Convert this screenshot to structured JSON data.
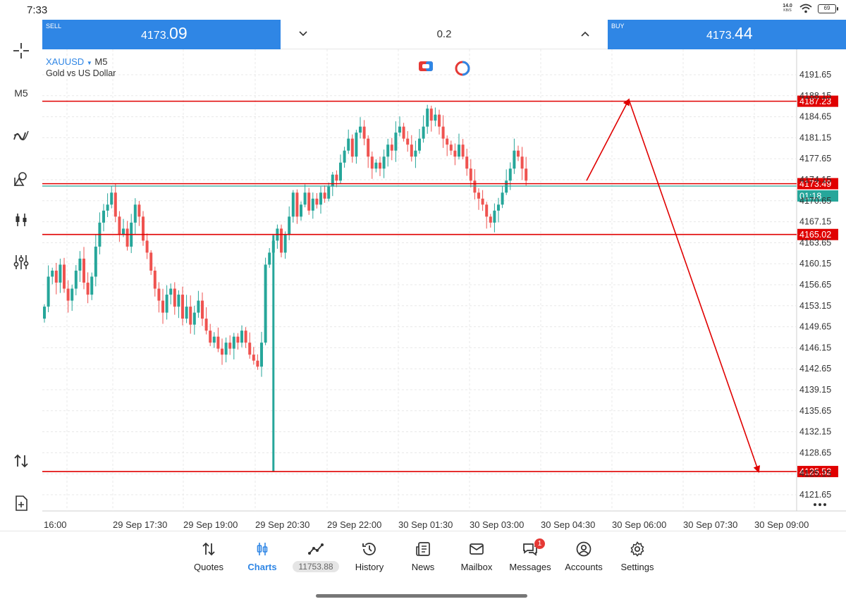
{
  "status": {
    "time": "7:33",
    "net_speed_value": "14.0",
    "net_speed_unit": "KB/S",
    "battery": "69"
  },
  "trade": {
    "sell_label": "SELL",
    "sell_price_main": "4173.",
    "sell_price_big": "09",
    "volume": "0.2",
    "buy_label": "BUY",
    "buy_price_main": "4173.",
    "buy_price_big": "44"
  },
  "left_toolbar": {
    "timeframe": "M5"
  },
  "chart": {
    "symbol": "XAUUSD",
    "timeframe": "M5",
    "description": "Gold vs US Dollar"
  },
  "colors": {
    "accent": "#2f86e5",
    "bull": "#26a69a",
    "bear": "#ef5350",
    "level": "#e00000"
  },
  "chart_data": {
    "type": "candlestick",
    "symbol": "XAUUSD",
    "timeframe": "M5",
    "y_ticks": [
      "4191.65",
      "4188.15",
      "4184.65",
      "4181.15",
      "4177.65",
      "4174.15",
      "4170.65",
      "4167.15",
      "4163.65",
      "4160.15",
      "4156.65",
      "4153.15",
      "4149.65",
      "4146.15",
      "4142.65",
      "4139.15",
      "4135.65",
      "4132.15",
      "4128.65",
      "4125.15",
      "4121.65"
    ],
    "ylim": [
      4120,
      4193
    ],
    "x_ticks": [
      "16:00",
      "29 Sep 17:30",
      "29 Sep 19:00",
      "29 Sep 20:30",
      "29 Sep 22:00",
      "30 Sep 01:30",
      "30 Sep 03:00",
      "30 Sep 04:30",
      "30 Sep 06:00",
      "30 Sep 07:30",
      "30 Sep 09:00"
    ],
    "price_levels": [
      {
        "value": 4187.23,
        "label": "4187.23"
      },
      {
        "value": 4173.49,
        "label": "4173.49"
      },
      {
        "value": 4165.02,
        "label": "4165.02"
      },
      {
        "value": 4125.52,
        "label": "4125.52"
      }
    ],
    "current_price": 4173.09,
    "countdown": "01:18",
    "closes": [
      4153,
      4158,
      4159,
      4157,
      4160,
      4156,
      4154,
      4156,
      4159,
      4161,
      4157,
      4155,
      4158,
      4163,
      4167,
      4169,
      4170,
      4172,
      4168,
      4165,
      4166,
      4163,
      4167,
      4170,
      4168,
      4164,
      4162,
      4159,
      4156,
      4154,
      4152,
      4155,
      4156,
      4153,
      4155,
      4151,
      4153,
      4150,
      4152,
      4154,
      4151,
      4149,
      4147,
      4148,
      4146,
      4145,
      4147,
      4146,
      4148,
      4147,
      4149,
      4147,
      4145,
      4144,
      4143,
      4147,
      4160,
      4162,
      4164,
      4166,
      4162,
      4165,
      4168,
      4172,
      4168,
      4170,
      4172,
      4169,
      4171,
      4170,
      4172,
      4171,
      4173,
      4175,
      4174,
      4177,
      4179,
      4181,
      4178,
      4182,
      4183,
      4181,
      4178,
      4176,
      4177,
      4176,
      4178,
      4180,
      4179,
      4182,
      4183,
      4181,
      4180,
      4178,
      4179,
      4181,
      4183,
      4186,
      4184,
      4185,
      4183,
      4181,
      4180,
      4179,
      4178,
      4180,
      4178,
      4176,
      4174,
      4172,
      4171,
      4170,
      4168,
      4167,
      4169,
      4170,
      4172,
      4174,
      4176,
      4179,
      4178,
      4176,
      4174
    ],
    "spike": {
      "index": 58,
      "low": 4125.5
    },
    "projection": [
      {
        "time": "30 Sep 05:45",
        "price": 4174
      },
      {
        "time": "30 Sep 06:05",
        "price": 4187.5
      },
      {
        "time": "30 Sep 09:00",
        "price": 4125.5
      }
    ]
  },
  "nav": {
    "quotes": "Quotes",
    "charts": "Charts",
    "balance": "11753.88",
    "history": "History",
    "news": "News",
    "mailbox": "Mailbox",
    "messages": "Messages",
    "messages_badge": "1",
    "accounts": "Accounts",
    "settings": "Settings"
  }
}
